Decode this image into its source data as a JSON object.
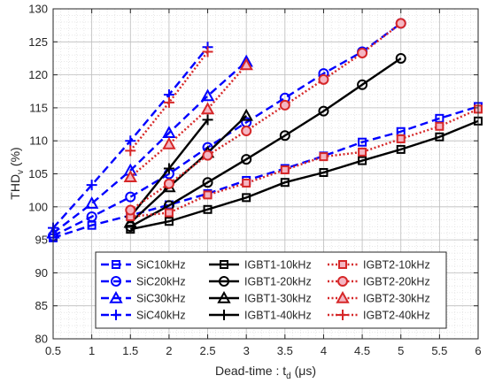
{
  "chart_data": {
    "type": "line",
    "title": "",
    "xlabel": "Dead-time : t",
    "xlabel_sub": "d",
    "xlabel_unit": " (μs)",
    "ylabel": "THD",
    "ylabel_sub": "v",
    "ylabel_unit": " (%)",
    "xlim": [
      0.5,
      6
    ],
    "ylim": [
      80,
      130
    ],
    "xticks": [
      "0.5",
      "1",
      "1.5",
      "2",
      "2.5",
      "3",
      "3.5",
      "4",
      "4.5",
      "5",
      "5.5",
      "6"
    ],
    "yticks": [
      "80",
      "85",
      "90",
      "95",
      "100",
      "105",
      "110",
      "115",
      "120",
      "125",
      "130"
    ],
    "grid": true,
    "minor_grid": true,
    "legend_position": "bottom-center",
    "series": [
      {
        "name": "SiC10kHz",
        "color": "#0000ff",
        "style": "dashed",
        "marker": "square",
        "x": [
          0.5,
          1,
          1.5,
          2,
          2.5,
          3,
          3.5,
          4,
          4.5,
          5,
          5.5,
          6
        ],
        "y": [
          95.3,
          97.2,
          98.7,
          100.3,
          102.0,
          104.0,
          105.8,
          107.7,
          109.8,
          111.4,
          113.4,
          115.2
        ]
      },
      {
        "name": "SiC20kHz",
        "color": "#0000ff",
        "style": "dashed",
        "marker": "circle",
        "x": [
          0.5,
          1,
          1.5,
          2,
          2.5,
          3,
          3.5,
          4,
          4.5,
          5
        ],
        "y": [
          95.6,
          98.5,
          101.5,
          105.0,
          109.0,
          112.8,
          116.5,
          120.2,
          123.5,
          127.8
        ]
      },
      {
        "name": "SiC30kHz",
        "color": "#0000ff",
        "style": "dashed",
        "marker": "triangle",
        "x": [
          0.5,
          1,
          1.5,
          2,
          2.5,
          3
        ],
        "y": [
          96.0,
          100.5,
          105.5,
          111.2,
          116.8,
          122.0
        ]
      },
      {
        "name": "SiC40kHz",
        "color": "#0000ff",
        "style": "dashed",
        "marker": "plus",
        "x": [
          0.5,
          1,
          1.5,
          2,
          2.5
        ],
        "y": [
          96.8,
          103.3,
          110.0,
          117.0,
          124.2
        ]
      },
      {
        "name": "IGBT1-10kHz",
        "color": "#000000",
        "style": "solid",
        "marker": "square",
        "x": [
          1.5,
          2,
          2.5,
          3,
          3.5,
          4,
          4.5,
          5,
          5.5,
          6
        ],
        "y": [
          96.6,
          97.8,
          99.6,
          101.4,
          103.7,
          105.2,
          107.0,
          108.7,
          110.6,
          113.0
        ]
      },
      {
        "name": "IGBT1-20kHz",
        "color": "#000000",
        "style": "solid",
        "marker": "circle",
        "x": [
          1.5,
          2,
          2.5,
          3,
          3.5,
          4,
          4.5,
          5
        ],
        "y": [
          97.0,
          100.2,
          103.7,
          107.2,
          110.8,
          114.5,
          118.5,
          122.5
        ]
      },
      {
        "name": "IGBT1-30kHz",
        "color": "#000000",
        "style": "solid",
        "marker": "triangle",
        "x": [
          1.5,
          2,
          2.5,
          3
        ],
        "y": [
          97.6,
          103.0,
          108.2,
          113.8
        ]
      },
      {
        "name": "IGBT1-40kHz",
        "color": "#000000",
        "style": "solid",
        "marker": "plus",
        "x": [
          1.5,
          2,
          2.5
        ],
        "y": [
          98.5,
          105.8,
          113.2
        ]
      },
      {
        "name": "IGBT2-10kHz",
        "color": "#d62728",
        "style": "dotted",
        "marker": "square",
        "x": [
          1.5,
          2,
          2.5,
          3,
          3.5,
          4,
          4.5,
          5,
          5.5,
          6
        ],
        "y": [
          98.5,
          99.1,
          101.8,
          103.6,
          105.6,
          107.6,
          108.3,
          110.3,
          112.2,
          114.8
        ]
      },
      {
        "name": "IGBT2-20kHz",
        "color": "#d62728",
        "style": "dotted",
        "marker": "circle",
        "x": [
          1.5,
          2,
          2.5,
          3,
          3.5,
          4,
          4.5,
          5
        ],
        "y": [
          99.5,
          103.5,
          107.8,
          111.5,
          115.4,
          119.3,
          123.3,
          127.8
        ]
      },
      {
        "name": "IGBT2-30kHz",
        "color": "#d62728",
        "style": "dotted",
        "marker": "triangle",
        "x": [
          1.5,
          2,
          2.5,
          3
        ],
        "y": [
          104.5,
          109.5,
          114.8,
          121.5
        ]
      },
      {
        "name": "IGBT2-40kHz",
        "color": "#d62728",
        "style": "dotted",
        "marker": "plus",
        "x": [
          1.5,
          2,
          2.5
        ],
        "y": [
          108.5,
          115.8,
          123.5
        ]
      }
    ]
  }
}
